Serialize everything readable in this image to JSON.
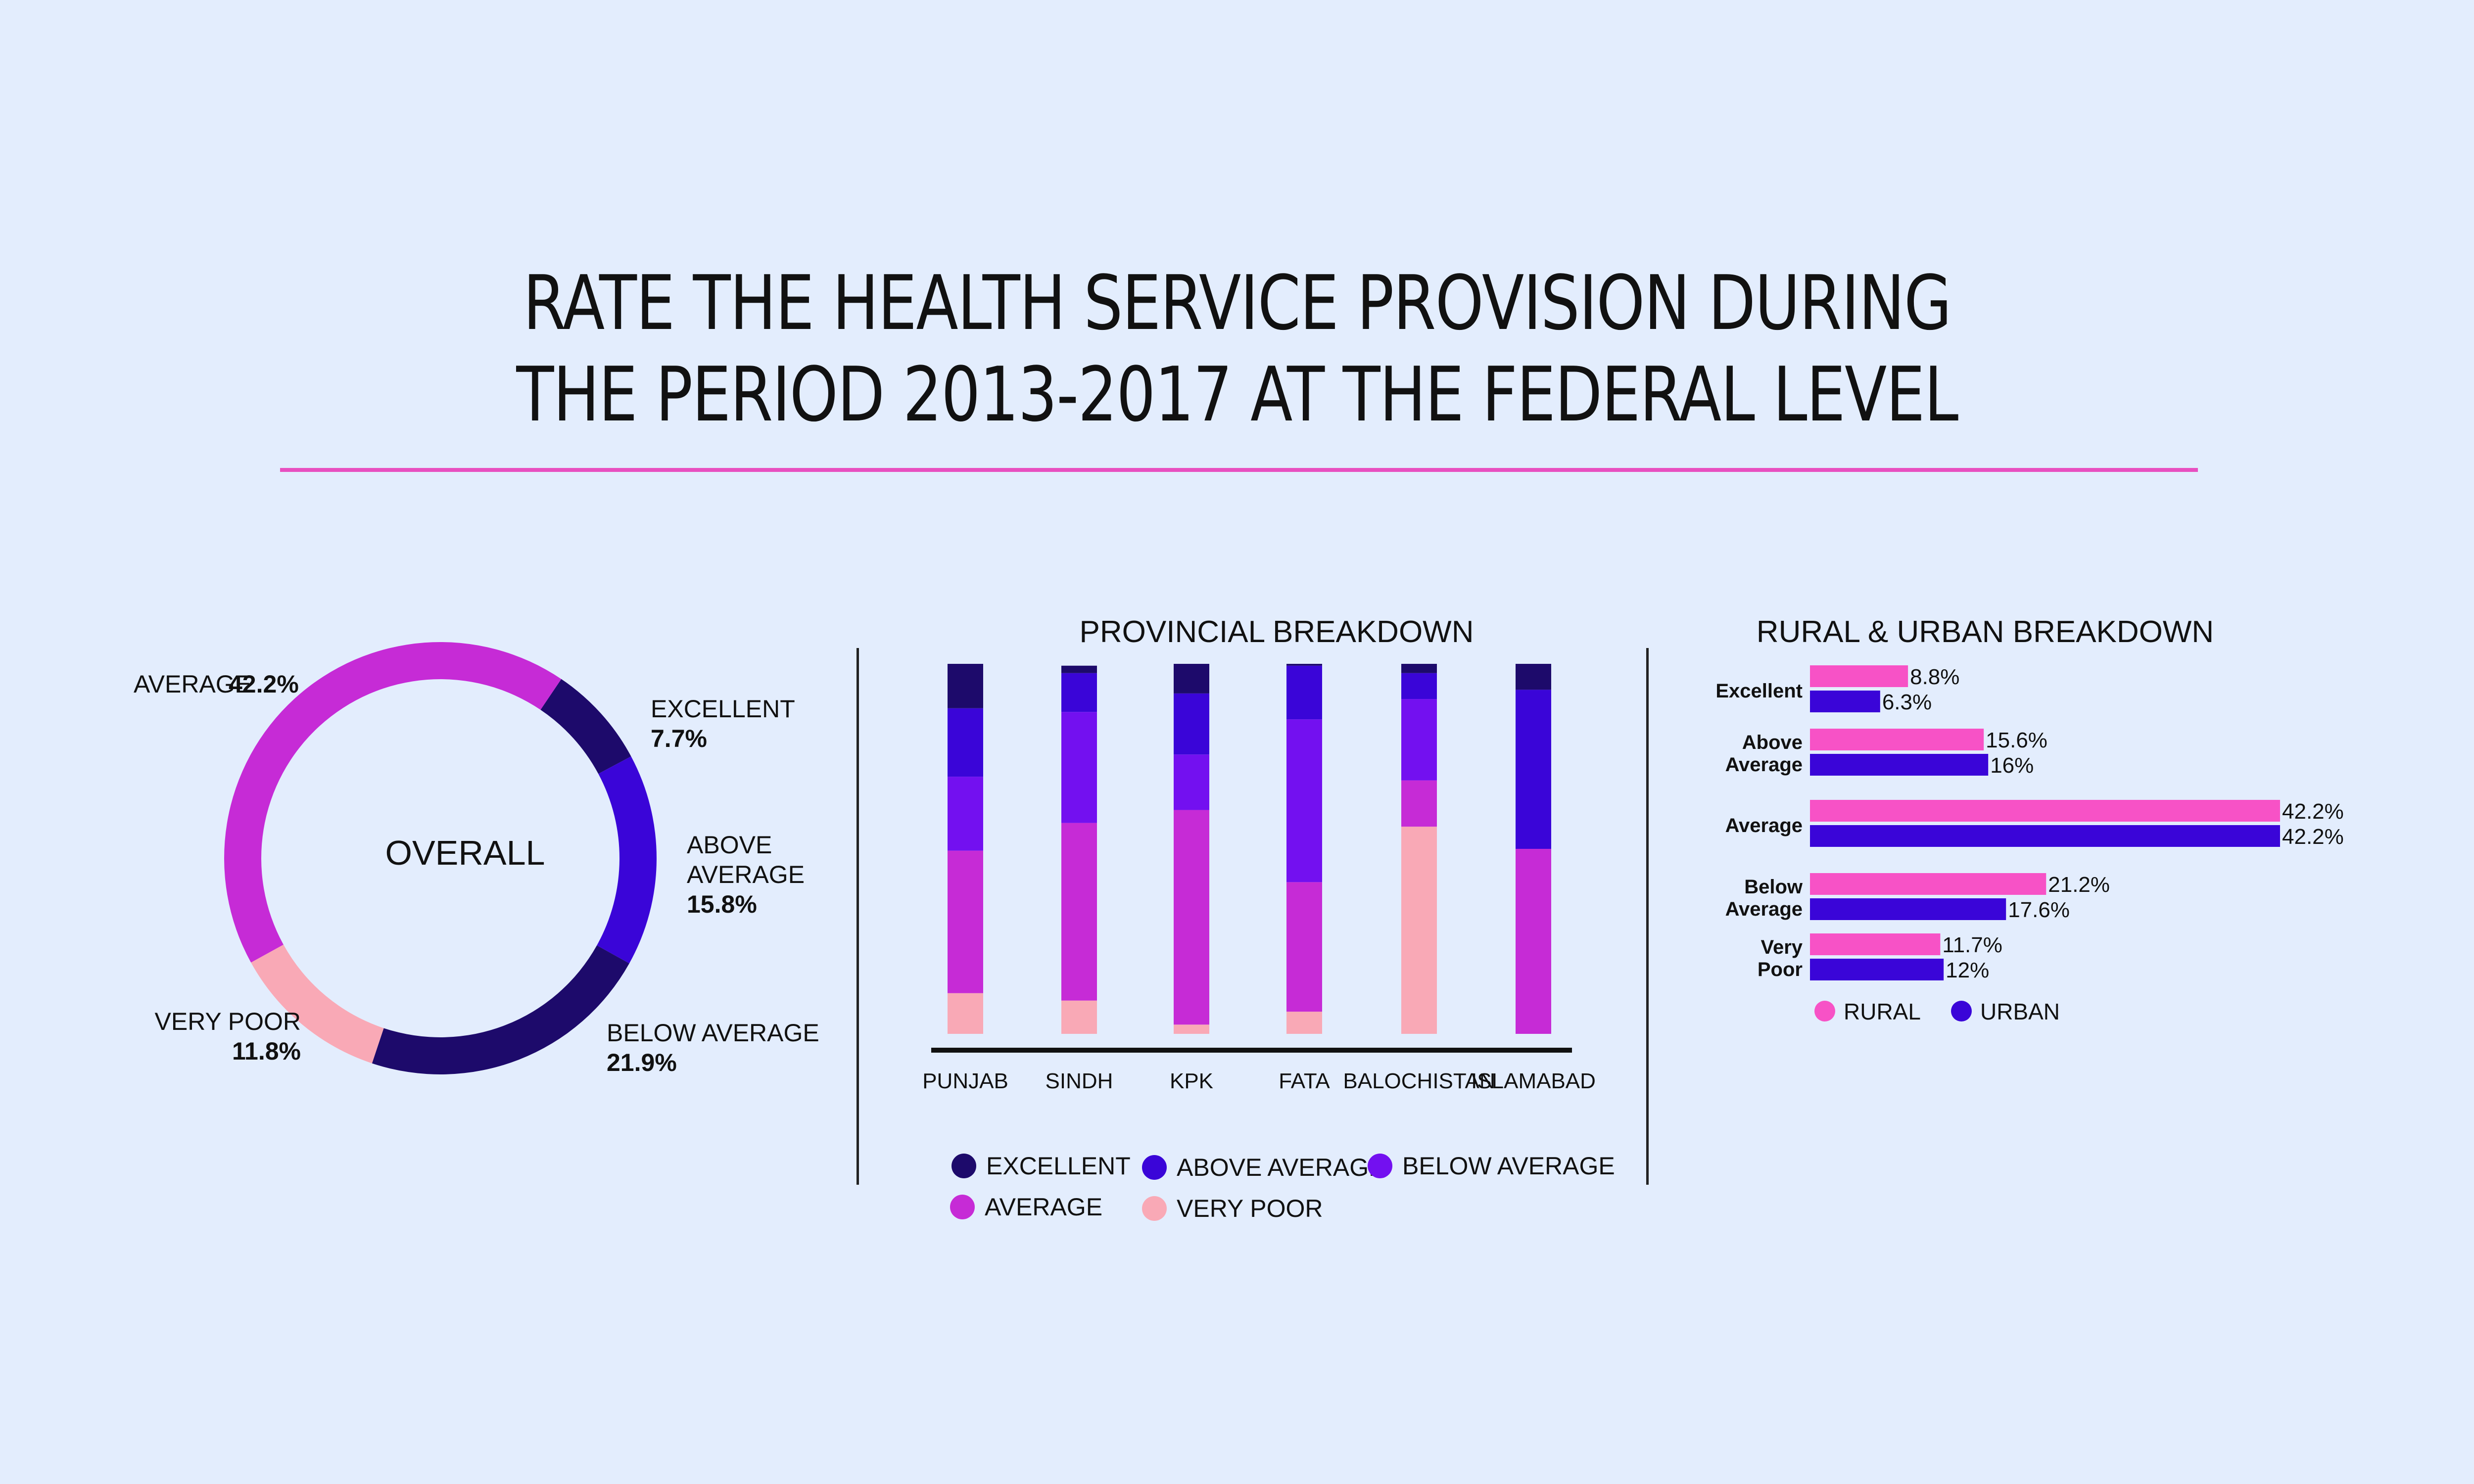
{
  "title": {
    "line1": "RATE THE HEALTH SERVICE PROVISION DURING",
    "line2": "THE PERIOD 2013-2017 AT THE FEDERAL LEVEL"
  },
  "colors": {
    "excellent": "#1d0a6b",
    "above_average": "#3a05d8",
    "below_average": "#7310f0",
    "average": "#c62bd6",
    "very_poor": "#f9a9b6",
    "rural": "#f752c6",
    "urban": "#3a05d8",
    "rule": "#e84fc0"
  },
  "chart_data": [
    {
      "type": "pie",
      "center_label": "OVERALL",
      "slices": [
        {
          "key": "excellent",
          "name": "EXCELLENT",
          "value": 7.7,
          "value_label": "7.7%"
        },
        {
          "key": "above_average",
          "name": "ABOVE AVERAGE",
          "name_line1": "ABOVE",
          "name_line2": "AVERAGE",
          "value": 15.8,
          "value_label": "15.8%"
        },
        {
          "key": "excellent",
          "name": "BELOW AVERAGE",
          "value": 21.9,
          "value_label": "21.9%"
        },
        {
          "key": "very_poor",
          "name": "VERY POOR",
          "value": 11.8,
          "value_label": "11.8%"
        },
        {
          "key": "average",
          "name": "AVERAGE",
          "value": 42.2,
          "value_label": "42.2%"
        }
      ]
    },
    {
      "type": "bar",
      "stacked": true,
      "title": "PROVINCIAL BREAKDOWN",
      "categories": [
        "PUNJAB",
        "SINDH",
        "KPK",
        "FATA",
        "BALOCHISTAN",
        "ISLAMABAD"
      ],
      "series": [
        {
          "key": "very_poor",
          "name": "VERY POOR",
          "values": [
            11,
            9,
            2.5,
            6,
            56,
            0
          ]
        },
        {
          "key": "average",
          "name": "AVERAGE",
          "values": [
            38.5,
            48,
            58,
            35,
            12.5,
            50
          ]
        },
        {
          "key": "below_average",
          "name": "BELOW AVERAGE",
          "values": [
            20,
            30,
            15,
            44,
            22,
            0
          ]
        },
        {
          "key": "above_average",
          "name": "ABOVE AVERAGE",
          "values": [
            18.5,
            10.5,
            16.5,
            14.5,
            7,
            43
          ]
        },
        {
          "key": "excellent",
          "name": "EXCELLENT",
          "values": [
            12,
            2,
            8,
            0.5,
            2.5,
            7
          ]
        }
      ],
      "ylim": [
        0,
        100
      ],
      "legend": [
        "EXCELLENT",
        "ABOVE AVERAGE",
        "BELOW AVERAGE",
        "AVERAGE",
        "VERY POOR"
      ]
    },
    {
      "type": "bar",
      "orientation": "horizontal",
      "title": "RURAL & URBAN BREAKDOWN",
      "categories": [
        "Excellent",
        "Above Average",
        "Average",
        "Below Average",
        "Very Poor"
      ],
      "category_lines": [
        [
          "Excellent"
        ],
        [
          "Above",
          "Average"
        ],
        [
          "Average"
        ],
        [
          "Below",
          "Average"
        ],
        [
          "Very",
          "Poor"
        ]
      ],
      "series": [
        {
          "key": "rural",
          "name": "RURAL",
          "values": [
            8.8,
            15.6,
            42.2,
            21.2,
            11.7
          ],
          "labels": [
            "8.8%",
            "15.6%",
            "42.2%",
            "21.2%",
            "11.7%"
          ]
        },
        {
          "key": "urban",
          "name": "URBAN",
          "values": [
            6.3,
            16,
            42.2,
            17.6,
            12
          ],
          "labels": [
            "6.3%",
            "16%",
            "42.2%",
            "17.6%",
            "12%"
          ]
        }
      ],
      "xlim": [
        0,
        42.2
      ]
    }
  ]
}
